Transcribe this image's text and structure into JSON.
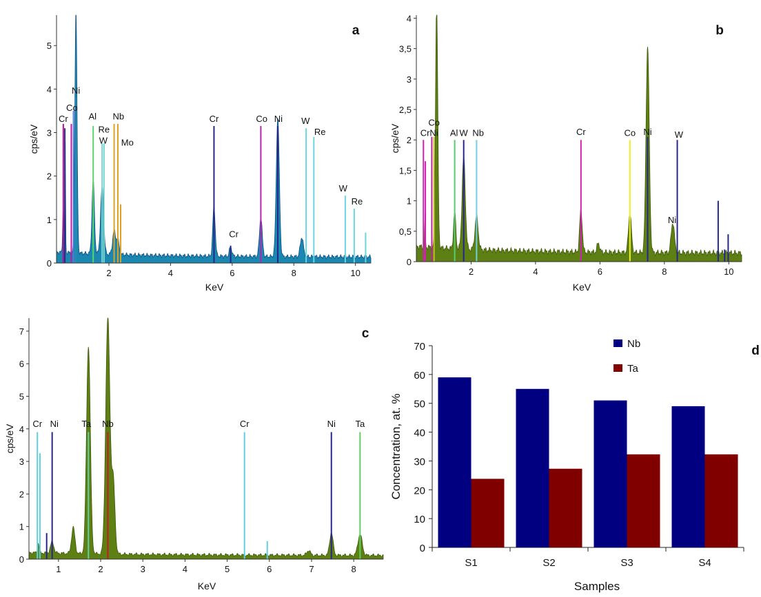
{
  "chart_data": [
    {
      "id": "a",
      "type": "area",
      "panel_letter": "a",
      "xlabel": "KeV",
      "ylabel": "cps/eV",
      "xlim": [
        0.3,
        10.5
      ],
      "ylim": [
        0,
        5.7
      ],
      "x_ticks": [
        2,
        4,
        6,
        8,
        10
      ],
      "x_tick_labels": [
        "2",
        "4",
        "6",
        "8",
        "10"
      ],
      "y_ticks": [
        0,
        1,
        2,
        3,
        4,
        5
      ],
      "y_tick_labels": [
        "0",
        "1",
        "2",
        "3",
        "4",
        "5"
      ],
      "fill_color": "#1a88b0",
      "edge_color": "#0d4f87",
      "background": 0.25,
      "peaks": [
        {
          "x": 0.52,
          "h": 1.1,
          "w": 0.02
        },
        {
          "x": 0.58,
          "h": 2.6,
          "w": 0.012
        },
        {
          "x": 0.93,
          "h": 5.6,
          "w": 0.035
        },
        {
          "x": 1.49,
          "h": 1.7,
          "w": 0.04
        },
        {
          "x": 1.78,
          "h": 1.55,
          "w": 0.05
        },
        {
          "x": 2.17,
          "h": 0.55,
          "w": 0.05
        },
        {
          "x": 2.29,
          "h": 0.35,
          "w": 0.04
        },
        {
          "x": 5.41,
          "h": 1.15,
          "w": 0.04
        },
        {
          "x": 5.95,
          "h": 0.22,
          "w": 0.04
        },
        {
          "x": 6.93,
          "h": 0.9,
          "w": 0.045
        },
        {
          "x": 7.48,
          "h": 3.2,
          "w": 0.05
        },
        {
          "x": 8.26,
          "h": 0.45,
          "w": 0.05
        }
      ],
      "marker_lines": [
        {
          "x": 0.52,
          "h": 3.2,
          "color": "#b0108e"
        },
        {
          "x": 0.57,
          "h": 3.1,
          "color": "#2a2a8a"
        },
        {
          "x": 0.78,
          "h": 3.2,
          "color": "#c01aa0"
        },
        {
          "x": 0.85,
          "h": 3.5,
          "color": "#4c7dd6"
        },
        {
          "x": 0.93,
          "h": 3.8,
          "color": "#2a8ab0"
        },
        {
          "x": 1.49,
          "h": 3.15,
          "color": "#5ad46c"
        },
        {
          "x": 1.78,
          "h": 2.75,
          "color": "#7ad6d0"
        },
        {
          "x": 1.84,
          "h": 2.75,
          "color": "#7ad6d0"
        },
        {
          "x": 2.17,
          "h": 3.2,
          "color": "#e0a020"
        },
        {
          "x": 2.29,
          "h": 3.2,
          "color": "#e0a020"
        },
        {
          "x": 2.38,
          "h": 1.35,
          "color": "#e0a020"
        },
        {
          "x": 5.41,
          "h": 3.15,
          "color": "#26268a"
        },
        {
          "x": 5.95,
          "h": 0.4,
          "color": "#26268a"
        },
        {
          "x": 6.93,
          "h": 3.15,
          "color": "#c020b0"
        },
        {
          "x": 7.48,
          "h": 3.15,
          "color": "#26268a"
        },
        {
          "x": 8.4,
          "h": 3.1,
          "color": "#6ad6e0"
        },
        {
          "x": 8.65,
          "h": 2.9,
          "color": "#6ad6e0"
        },
        {
          "x": 9.67,
          "h": 1.55,
          "color": "#6ad6e0"
        },
        {
          "x": 9.96,
          "h": 1.25,
          "color": "#6ad6e0"
        },
        {
          "x": 10.33,
          "h": 0.7,
          "color": "#6ad6e0"
        }
      ],
      "annotations": [
        {
          "text": "Ni",
          "x": 0.93,
          "y": 3.85
        },
        {
          "text": "Co",
          "x": 0.8,
          "y": 3.45
        },
        {
          "text": "Cr",
          "x": 0.52,
          "y": 3.2
        },
        {
          "text": "Al",
          "x": 1.47,
          "y": 3.25
        },
        {
          "text": "Re",
          "x": 1.84,
          "y": 2.95
        },
        {
          "text": "Nb",
          "x": 2.31,
          "y": 3.25
        },
        {
          "text": "W",
          "x": 1.82,
          "y": 2.7
        },
        {
          "text": "Mo",
          "x": 2.6,
          "y": 2.65
        },
        {
          "text": "Cr",
          "x": 5.41,
          "y": 3.2
        },
        {
          "text": "Cr",
          "x": 6.05,
          "y": 0.55
        },
        {
          "text": "Co",
          "x": 6.96,
          "y": 3.2
        },
        {
          "text": "Ni",
          "x": 7.5,
          "y": 3.2
        },
        {
          "text": "W",
          "x": 8.38,
          "y": 3.15
        },
        {
          "text": "Re",
          "x": 8.85,
          "y": 2.9
        },
        {
          "text": "W",
          "x": 9.6,
          "y": 1.6
        },
        {
          "text": "Re",
          "x": 10.05,
          "y": 1.3
        }
      ]
    },
    {
      "id": "b",
      "type": "area",
      "panel_letter": "b",
      "xlabel": "KeV",
      "ylabel": "cps/eV",
      "xlim": [
        0.3,
        10.4
      ],
      "ylim": [
        0,
        4.05
      ],
      "x_ticks": [
        2,
        4,
        6,
        8,
        10
      ],
      "x_tick_labels": [
        "2",
        "4",
        "6",
        "8",
        "10"
      ],
      "y_ticks": [
        0,
        0.5,
        1,
        1.5,
        2,
        2.5,
        3,
        3.5,
        4
      ],
      "y_tick_labels": [
        "0",
        "0,5",
        "1",
        "1,5",
        "2",
        "2,5",
        "3",
        "3,5",
        "4"
      ],
      "fill_color": "#5e7f14",
      "edge_color": "#3e5a0a",
      "background": 0.25,
      "peaks": [
        {
          "x": 0.57,
          "h": 0.5,
          "w": 0.012
        },
        {
          "x": 0.93,
          "h": 4.05,
          "w": 0.035
        },
        {
          "x": 1.49,
          "h": 0.6,
          "w": 0.035
        },
        {
          "x": 1.77,
          "h": 1.5,
          "w": 0.05
        },
        {
          "x": 2.17,
          "h": 0.55,
          "w": 0.05
        },
        {
          "x": 5.41,
          "h": 0.7,
          "w": 0.04
        },
        {
          "x": 5.95,
          "h": 0.15,
          "w": 0.04
        },
        {
          "x": 6.93,
          "h": 0.65,
          "w": 0.045
        },
        {
          "x": 7.48,
          "h": 3.4,
          "w": 0.05
        },
        {
          "x": 8.26,
          "h": 0.5,
          "w": 0.05
        }
      ],
      "marker_lines": [
        {
          "x": 0.52,
          "h": 2.0,
          "color": "#d020b0"
        },
        {
          "x": 0.58,
          "h": 1.65,
          "color": "#d020b0"
        },
        {
          "x": 0.78,
          "h": 2.05,
          "color": "#c020a0"
        },
        {
          "x": 0.85,
          "h": 2.05,
          "color": "#c0c020"
        },
        {
          "x": 1.49,
          "h": 2.0,
          "color": "#50d070"
        },
        {
          "x": 1.77,
          "h": 2.0,
          "color": "#26268a"
        },
        {
          "x": 2.17,
          "h": 2.0,
          "color": "#70d0e0"
        },
        {
          "x": 5.41,
          "h": 2.0,
          "color": "#d020b0"
        },
        {
          "x": 6.93,
          "h": 2.0,
          "color": "#f0f020"
        },
        {
          "x": 7.48,
          "h": 2.05,
          "color": "#26268a"
        },
        {
          "x": 8.4,
          "h": 2.0,
          "color": "#26268a"
        },
        {
          "x": 9.67,
          "h": 1.0,
          "color": "#26268a"
        },
        {
          "x": 9.87,
          "h": 0.2,
          "color": "#26268a"
        },
        {
          "x": 9.98,
          "h": 0.45,
          "color": "#26268a"
        }
      ],
      "annotations": [
        {
          "text": "Co",
          "x": 0.85,
          "y": 2.2
        },
        {
          "text": "CrNi",
          "x": 0.7,
          "y": 2.03
        },
        {
          "text": "Al",
          "x": 1.47,
          "y": 2.03
        },
        {
          "text": "W",
          "x": 1.77,
          "y": 2.03
        },
        {
          "text": "Nb",
          "x": 2.22,
          "y": 2.03
        },
        {
          "text": "Cr",
          "x": 5.41,
          "y": 2.05
        },
        {
          "text": "Co",
          "x": 6.93,
          "y": 2.03
        },
        {
          "text": "Ni",
          "x": 7.48,
          "y": 2.05
        },
        {
          "text": "W",
          "x": 8.45,
          "y": 2.0
        },
        {
          "text": "Ni",
          "x": 8.24,
          "y": 0.6
        }
      ]
    },
    {
      "id": "c",
      "type": "area",
      "panel_letter": "c",
      "xlabel": "KeV",
      "ylabel": "cps/eV",
      "xlim": [
        0.3,
        8.7
      ],
      "ylim": [
        0,
        7.4
      ],
      "x_ticks": [
        1,
        2,
        3,
        4,
        5,
        6,
        7,
        8
      ],
      "x_tick_labels": [
        "1",
        "2",
        "3",
        "4",
        "5",
        "6",
        "7",
        "8"
      ],
      "y_ticks": [
        0,
        1,
        2,
        3,
        4,
        5,
        6,
        7
      ],
      "y_tick_labels": [
        "0",
        "1",
        "2",
        "3",
        "4",
        "5",
        "6",
        "7"
      ],
      "fill_color": "#5e7f14",
      "edge_color": "#3e5a0a",
      "background": 0.2,
      "peaks": [
        {
          "x": 0.52,
          "h": 0.3,
          "w": 0.02
        },
        {
          "x": 0.85,
          "h": 0.35,
          "w": 0.04
        },
        {
          "x": 1.35,
          "h": 0.8,
          "w": 0.04
        },
        {
          "x": 1.71,
          "h": 6.4,
          "w": 0.045
        },
        {
          "x": 2.17,
          "h": 7.3,
          "w": 0.05
        },
        {
          "x": 2.3,
          "h": 2.2,
          "w": 0.04
        },
        {
          "x": 6.93,
          "h": 0.15,
          "w": 0.04
        },
        {
          "x": 7.47,
          "h": 0.7,
          "w": 0.04
        },
        {
          "x": 8.15,
          "h": 0.65,
          "w": 0.05
        }
      ],
      "marker_lines": [
        {
          "x": 0.5,
          "h": 3.9,
          "color": "#60d0e0"
        },
        {
          "x": 0.56,
          "h": 3.25,
          "color": "#60d0e0"
        },
        {
          "x": 0.72,
          "h": 0.8,
          "color": "#26268a"
        },
        {
          "x": 0.85,
          "h": 3.9,
          "color": "#26268a"
        },
        {
          "x": 1.71,
          "h": 3.9,
          "color": "#60d0a0"
        },
        {
          "x": 2.17,
          "h": 3.9,
          "color": "#c02020"
        },
        {
          "x": 5.41,
          "h": 3.9,
          "color": "#60d0e0"
        },
        {
          "x": 5.95,
          "h": 0.55,
          "color": "#60d0e0"
        },
        {
          "x": 7.47,
          "h": 3.9,
          "color": "#26268a"
        },
        {
          "x": 8.15,
          "h": 3.9,
          "color": "#60d060"
        }
      ],
      "annotations": [
        {
          "text": "Cr",
          "x": 0.5,
          "y": 4.0
        },
        {
          "text": "Ni",
          "x": 0.9,
          "y": 4.0
        },
        {
          "text": "Ta",
          "x": 1.66,
          "y": 4.0
        },
        {
          "text": "Nb",
          "x": 2.17,
          "y": 4.0
        },
        {
          "text": "Cr",
          "x": 5.41,
          "y": 4.0
        },
        {
          "text": "Ni",
          "x": 7.47,
          "y": 4.0
        },
        {
          "text": "Ta",
          "x": 8.15,
          "y": 4.0
        }
      ]
    },
    {
      "id": "d",
      "type": "bar",
      "panel_letter": "d",
      "xlabel": "Samples",
      "ylabel": "Concentration, at. %",
      "ylim": [
        0,
        70
      ],
      "y_ticks": [
        0,
        10,
        20,
        30,
        40,
        50,
        60,
        70
      ],
      "categories": [
        "S1",
        "S2",
        "S3",
        "S4"
      ],
      "series": [
        {
          "name": "Nb",
          "color": "#000080",
          "values": [
            59,
            55,
            51,
            49
          ]
        },
        {
          "name": "Ta",
          "color": "#800000",
          "values": [
            23.8,
            27.3,
            32.3,
            32.3
          ]
        }
      ],
      "legend_position": "top-center"
    }
  ]
}
